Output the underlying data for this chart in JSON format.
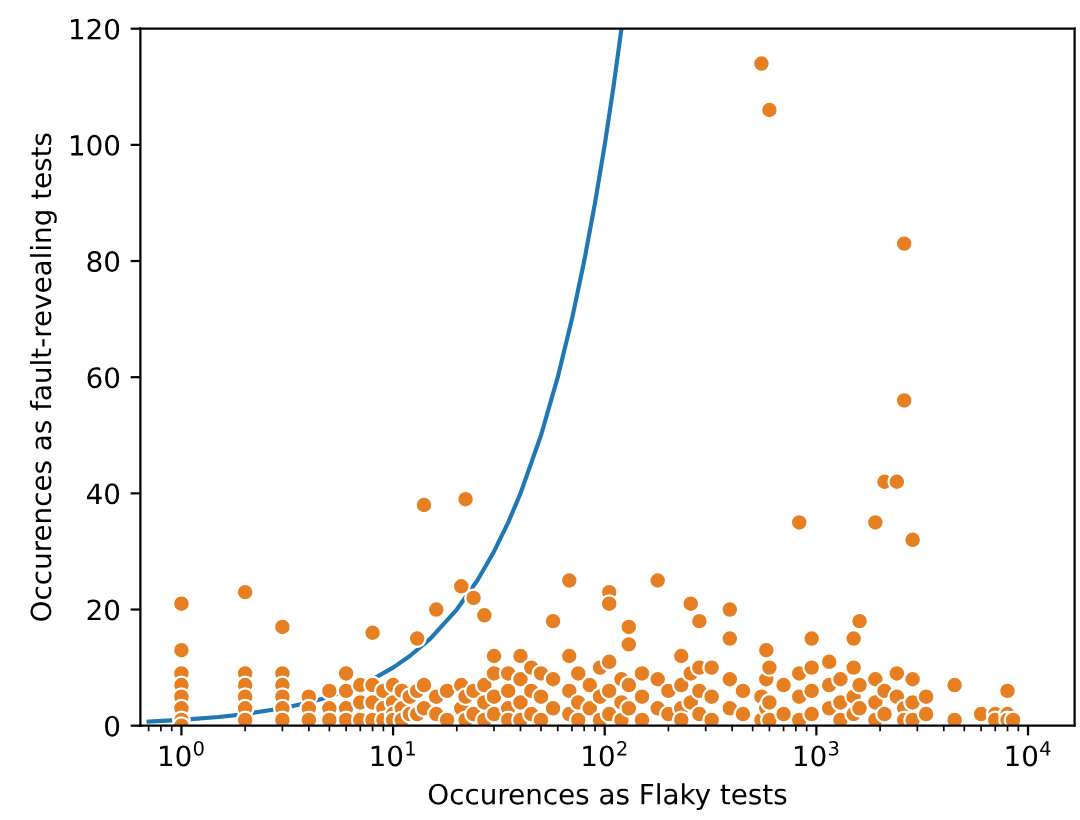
{
  "chart_data": {
    "type": "scatter",
    "xlabel": "Occurences as Flaky tests",
    "ylabel": "Occurences as fault-revealing tests",
    "log": "x",
    "grid": false,
    "xlim": [
      0.64,
      16600
    ],
    "xticks": [
      {
        "value": 1,
        "label": "10$^{0}$"
      },
      {
        "value": 10,
        "label": "10$^{1}$"
      },
      {
        "value": 100,
        "label": "10$^{2}$"
      },
      {
        "value": 1000,
        "label": "10$^{3}$"
      },
      {
        "value": 10000,
        "label": "10$^{4}$"
      }
    ],
    "ylim": [
      0,
      120
    ],
    "yticks": [
      0,
      20,
      40,
      60,
      80,
      100,
      120
    ],
    "series": [
      {
        "type": "line",
        "color": "#1f77b4",
        "marker": "none",
        "line_style": "solid",
        "x": [
          0.7,
          1,
          1.5,
          2,
          3,
          4,
          5,
          6,
          8,
          10,
          12,
          15,
          20,
          25,
          30,
          35,
          40,
          50,
          60,
          70,
          80,
          90,
          100,
          110,
          120
        ],
        "values": [
          0.7,
          1,
          1.5,
          2,
          3,
          4,
          5,
          6,
          8,
          10,
          12,
          15,
          20,
          25,
          30,
          35,
          40,
          50,
          60,
          70,
          80,
          90,
          100,
          110,
          120
        ]
      },
      {
        "color": "#e67e22",
        "marker": "circle",
        "x": [
          1,
          1,
          1,
          1,
          1,
          1,
          1,
          1,
          2,
          2,
          2,
          2,
          2,
          2,
          3,
          3,
          3,
          3,
          3,
          3,
          4,
          4,
          4,
          5,
          5,
          5,
          6,
          6,
          6,
          6,
          7,
          7,
          7,
          8,
          8,
          8,
          8,
          9,
          9,
          9,
          10,
          10,
          10,
          10,
          11,
          11,
          11,
          12,
          12,
          13,
          13,
          13,
          14,
          14,
          14,
          16,
          16,
          16,
          18,
          18,
          21,
          21,
          21,
          22,
          22,
          22,
          24,
          24,
          24,
          27,
          27,
          27,
          27,
          30,
          30,
          30,
          30,
          35,
          35,
          35,
          35,
          40,
          40,
          40,
          40,
          45,
          45,
          45,
          50,
          50,
          50,
          57,
          57,
          57,
          68,
          68,
          68,
          68,
          75,
          75,
          75,
          85,
          85,
          95,
          95,
          95,
          105,
          105,
          105,
          105,
          105,
          120,
          120,
          120,
          130,
          130,
          130,
          130,
          150,
          150,
          150,
          178,
          178,
          178,
          200,
          200,
          230,
          230,
          230,
          230,
          255,
          255,
          255,
          280,
          280,
          280,
          280,
          320,
          320,
          320,
          390,
          390,
          390,
          390,
          450,
          450,
          550,
          550,
          550,
          580,
          580,
          580,
          600,
          600,
          600,
          600,
          700,
          700,
          830,
          830,
          830,
          830,
          950,
          950,
          950,
          950,
          1150,
          1150,
          1150,
          1300,
          1300,
          1300,
          1500,
          1500,
          1500,
          1500,
          1600,
          1600,
          1600,
          1900,
          1900,
          1900,
          1900,
          2100,
          2100,
          2100,
          2400,
          2400,
          2400,
          2600,
          2600,
          2600,
          2600,
          2850,
          2850,
          2850,
          2850,
          3300,
          3300,
          4500,
          4500,
          6000,
          7000,
          7000,
          8000,
          8000,
          8000,
          8500
        ],
        "values": [
          21,
          13,
          9,
          7,
          5,
          3,
          1,
          0,
          23,
          9,
          7,
          5,
          3,
          1,
          17,
          9,
          7,
          5,
          3,
          1,
          5,
          3,
          1,
          6,
          3,
          1,
          9,
          6,
          3,
          1,
          7,
          4,
          1,
          16,
          7,
          4,
          1,
          6,
          3,
          1,
          7,
          4,
          2,
          1,
          6,
          3,
          1,
          5,
          2,
          15,
          6,
          2,
          38,
          7,
          3,
          20,
          5,
          2,
          6,
          1,
          24,
          7,
          3,
          39,
          5,
          1,
          22,
          6,
          2,
          19,
          7,
          4,
          1,
          12,
          9,
          5,
          2,
          9,
          6,
          3,
          1,
          12,
          8,
          4,
          1,
          10,
          6,
          2,
          9,
          5,
          1,
          18,
          8,
          3,
          25,
          12,
          6,
          2,
          9,
          4,
          1,
          7,
          3,
          10,
          5,
          1,
          23,
          21,
          11,
          6,
          2,
          8,
          4,
          1,
          17,
          14,
          7,
          3,
          9,
          5,
          1,
          25,
          8,
          3,
          6,
          2,
          12,
          7,
          3,
          1,
          21,
          9,
          4,
          18,
          10,
          6,
          2,
          10,
          5,
          1,
          20,
          15,
          8,
          3,
          6,
          2,
          114,
          5,
          1,
          13,
          8,
          3,
          106,
          10,
          4,
          1,
          7,
          2,
          35,
          9,
          5,
          1,
          15,
          10,
          6,
          2,
          11,
          7,
          3,
          8,
          4,
          1,
          15,
          10,
          5,
          2,
          18,
          7,
          3,
          35,
          8,
          4,
          1,
          42,
          6,
          2,
          42,
          9,
          5,
          83,
          56,
          3,
          1,
          32,
          8,
          4,
          1,
          5,
          2,
          7,
          1,
          2,
          2,
          1,
          6,
          2,
          1,
          1
        ]
      }
    ]
  }
}
